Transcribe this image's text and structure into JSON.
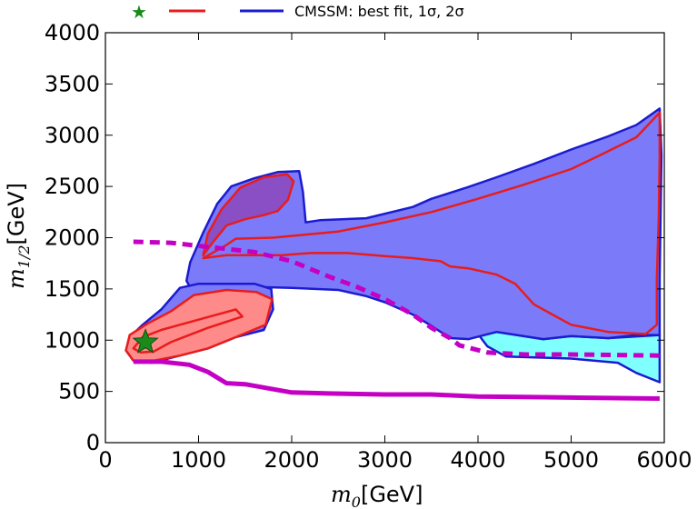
{
  "chart_data": {
    "type": "area",
    "xlabel": {
      "var": "m",
      "sub": "0",
      "unit": "[GeV]"
    },
    "ylabel": {
      "var": "m",
      "sub": "1/2",
      "unit": "[GeV]"
    },
    "xlim": [
      0,
      6000
    ],
    "ylim": [
      0,
      4000
    ],
    "xticks": [
      "0",
      "1000",
      "2000",
      "3000",
      "4000",
      "5000",
      "6000"
    ],
    "yticks": [
      "0",
      "500",
      "1000",
      "1500",
      "2000",
      "2500",
      "3000",
      "3500",
      "4000"
    ],
    "xtick_values": [
      0,
      1000,
      2000,
      3000,
      4000,
      5000,
      6000
    ],
    "ytick_values": [
      0,
      500,
      1000,
      1500,
      2000,
      2500,
      3000,
      3500,
      4000
    ],
    "grid": false,
    "legend": {
      "placement": "top, above axes",
      "text": "CMSSM: best fit, 1σ, 2σ",
      "markers": [
        "green-star",
        "red-line",
        "blue-line"
      ]
    },
    "best_fit": {
      "x": 430,
      "y": 980,
      "color": "#1a8a1a"
    },
    "colors": {
      "sigma2_fill": "#7b7bfa",
      "sigma2_line": "#1b1bd0",
      "sigma1_fill": "#ff8a8a",
      "sigma1_line": "#e81c1c",
      "overlap_fill": "#8a4fc4",
      "cyan_fill": "#80ffff",
      "magenta_line": "#c400c4"
    },
    "regions": {
      "sigma2_main": [
        [
          950,
          1450
        ],
        [
          870,
          1580
        ],
        [
          910,
          1760
        ],
        [
          1050,
          2050
        ],
        [
          1200,
          2330
        ],
        [
          1350,
          2500
        ],
        [
          1600,
          2580
        ],
        [
          1850,
          2640
        ],
        [
          2080,
          2650
        ],
        [
          2120,
          2450
        ],
        [
          2150,
          2150
        ],
        [
          2300,
          2170
        ],
        [
          2800,
          2190
        ],
        [
          3300,
          2300
        ],
        [
          3500,
          2380
        ],
        [
          3880,
          2490
        ],
        [
          4200,
          2590
        ],
        [
          4600,
          2720
        ],
        [
          5000,
          2860
        ],
        [
          5400,
          2990
        ],
        [
          5700,
          3100
        ],
        [
          5950,
          3260
        ],
        [
          5970,
          2800
        ],
        [
          5960,
          2200
        ],
        [
          5950,
          1600
        ],
        [
          5950,
          1200
        ],
        [
          5950,
          1050
        ],
        [
          5700,
          1050
        ],
        [
          5400,
          1020
        ],
        [
          5000,
          1040
        ],
        [
          4700,
          1010
        ],
        [
          4200,
          1080
        ],
        [
          3900,
          1010
        ],
        [
          3700,
          1020
        ],
        [
          3500,
          1140
        ],
        [
          3300,
          1250
        ],
        [
          3000,
          1370
        ],
        [
          2800,
          1430
        ],
        [
          2500,
          1490
        ],
        [
          2000,
          1510
        ],
        [
          1600,
          1520
        ],
        [
          1300,
          1510
        ],
        [
          1050,
          1480
        ]
      ],
      "cyan": [
        [
          4000,
          1060
        ],
        [
          4100,
          940
        ],
        [
          4300,
          840
        ],
        [
          5000,
          820
        ],
        [
          5500,
          780
        ],
        [
          5700,
          680
        ],
        [
          5950,
          590
        ],
        [
          5950,
          1050
        ],
        [
          5400,
          1020
        ],
        [
          5000,
          1040
        ],
        [
          4700,
          1010
        ],
        [
          4200,
          1080
        ]
      ],
      "sigma2_lower": [
        [
          800,
          1510
        ],
        [
          1000,
          1550
        ],
        [
          1300,
          1550
        ],
        [
          1600,
          1550
        ],
        [
          1780,
          1500
        ],
        [
          1800,
          1300
        ],
        [
          1700,
          1100
        ],
        [
          1400,
          1030
        ],
        [
          1100,
          920
        ],
        [
          800,
          850
        ],
        [
          500,
          780
        ],
        [
          300,
          800
        ],
        [
          220,
          900
        ],
        [
          260,
          1030
        ],
        [
          400,
          1150
        ],
        [
          600,
          1300
        ]
      ],
      "sigma1_lower": [
        [
          300,
          800
        ],
        [
          220,
          900
        ],
        [
          260,
          1050
        ],
        [
          450,
          1160
        ],
        [
          700,
          1280
        ],
        [
          950,
          1440
        ],
        [
          1300,
          1490
        ],
        [
          1620,
          1470
        ],
        [
          1790,
          1400
        ],
        [
          1720,
          1150
        ],
        [
          1400,
          1030
        ],
        [
          1100,
          920
        ],
        [
          800,
          850
        ],
        [
          520,
          800
        ]
      ],
      "sigma1_best": [
        [
          300,
          920
        ],
        [
          400,
          1030
        ],
        [
          600,
          1100
        ],
        [
          800,
          1150
        ],
        [
          1000,
          1200
        ],
        [
          1200,
          1250
        ],
        [
          1400,
          1300
        ],
        [
          1470,
          1230
        ],
        [
          1300,
          1180
        ],
        [
          1100,
          1120
        ],
        [
          900,
          1050
        ],
        [
          700,
          980
        ],
        [
          520,
          890
        ],
        [
          380,
          880
        ]
      ],
      "sigma1_upper": [
        [
          1050,
          1830
        ],
        [
          1100,
          2040
        ],
        [
          1250,
          2280
        ],
        [
          1450,
          2490
        ],
        [
          1700,
          2590
        ],
        [
          1950,
          2620
        ],
        [
          2020,
          2550
        ],
        [
          1960,
          2370
        ],
        [
          1850,
          2260
        ],
        [
          1700,
          2220
        ],
        [
          1500,
          2180
        ],
        [
          1300,
          2120
        ],
        [
          1150,
          1950
        ]
      ],
      "sigma1_main": [
        [
          1050,
          1800
        ],
        [
          1300,
          1930
        ],
        [
          1400,
          1990
        ],
        [
          1800,
          2000
        ],
        [
          2500,
          2060
        ],
        [
          3000,
          2150
        ],
        [
          3500,
          2250
        ],
        [
          4000,
          2380
        ],
        [
          4500,
          2520
        ],
        [
          5000,
          2670
        ],
        [
          5300,
          2800
        ],
        [
          5700,
          2980
        ],
        [
          5950,
          3220
        ],
        [
          5950,
          2800
        ],
        [
          5940,
          2200
        ],
        [
          5920,
          1600
        ],
        [
          5920,
          1150
        ],
        [
          5800,
          1060
        ],
        [
          5400,
          1080
        ],
        [
          5000,
          1150
        ],
        [
          4800,
          1250
        ],
        [
          4600,
          1350
        ],
        [
          4400,
          1550
        ],
        [
          4200,
          1640
        ],
        [
          3900,
          1700
        ],
        [
          3700,
          1720
        ],
        [
          3600,
          1770
        ],
        [
          3300,
          1800
        ],
        [
          3000,
          1820
        ],
        [
          2600,
          1850
        ],
        [
          2200,
          1850
        ],
        [
          1900,
          1830
        ],
        [
          1600,
          1830
        ],
        [
          1300,
          1830
        ]
      ],
      "magenta_dashed": [
        [
          300,
          1960
        ],
        [
          700,
          1950
        ],
        [
          1100,
          1910
        ],
        [
          1600,
          1860
        ],
        [
          2000,
          1770
        ],
        [
          2400,
          1620
        ],
        [
          2700,
          1520
        ],
        [
          3000,
          1400
        ],
        [
          3300,
          1250
        ],
        [
          3500,
          1120
        ],
        [
          3700,
          1020
        ],
        [
          3800,
          950
        ],
        [
          4100,
          880
        ],
        [
          4500,
          860
        ],
        [
          5000,
          860
        ],
        [
          5500,
          855
        ],
        [
          5950,
          850
        ]
      ],
      "magenta_solid": [
        [
          300,
          790
        ],
        [
          600,
          790
        ],
        [
          900,
          760
        ],
        [
          1100,
          690
        ],
        [
          1300,
          580
        ],
        [
          1500,
          570
        ],
        [
          2000,
          490
        ],
        [
          2400,
          480
        ],
        [
          3000,
          470
        ],
        [
          3500,
          470
        ],
        [
          4000,
          450
        ],
        [
          4500,
          445
        ],
        [
          5000,
          440
        ],
        [
          5500,
          435
        ],
        [
          5950,
          430
        ]
      ]
    }
  }
}
